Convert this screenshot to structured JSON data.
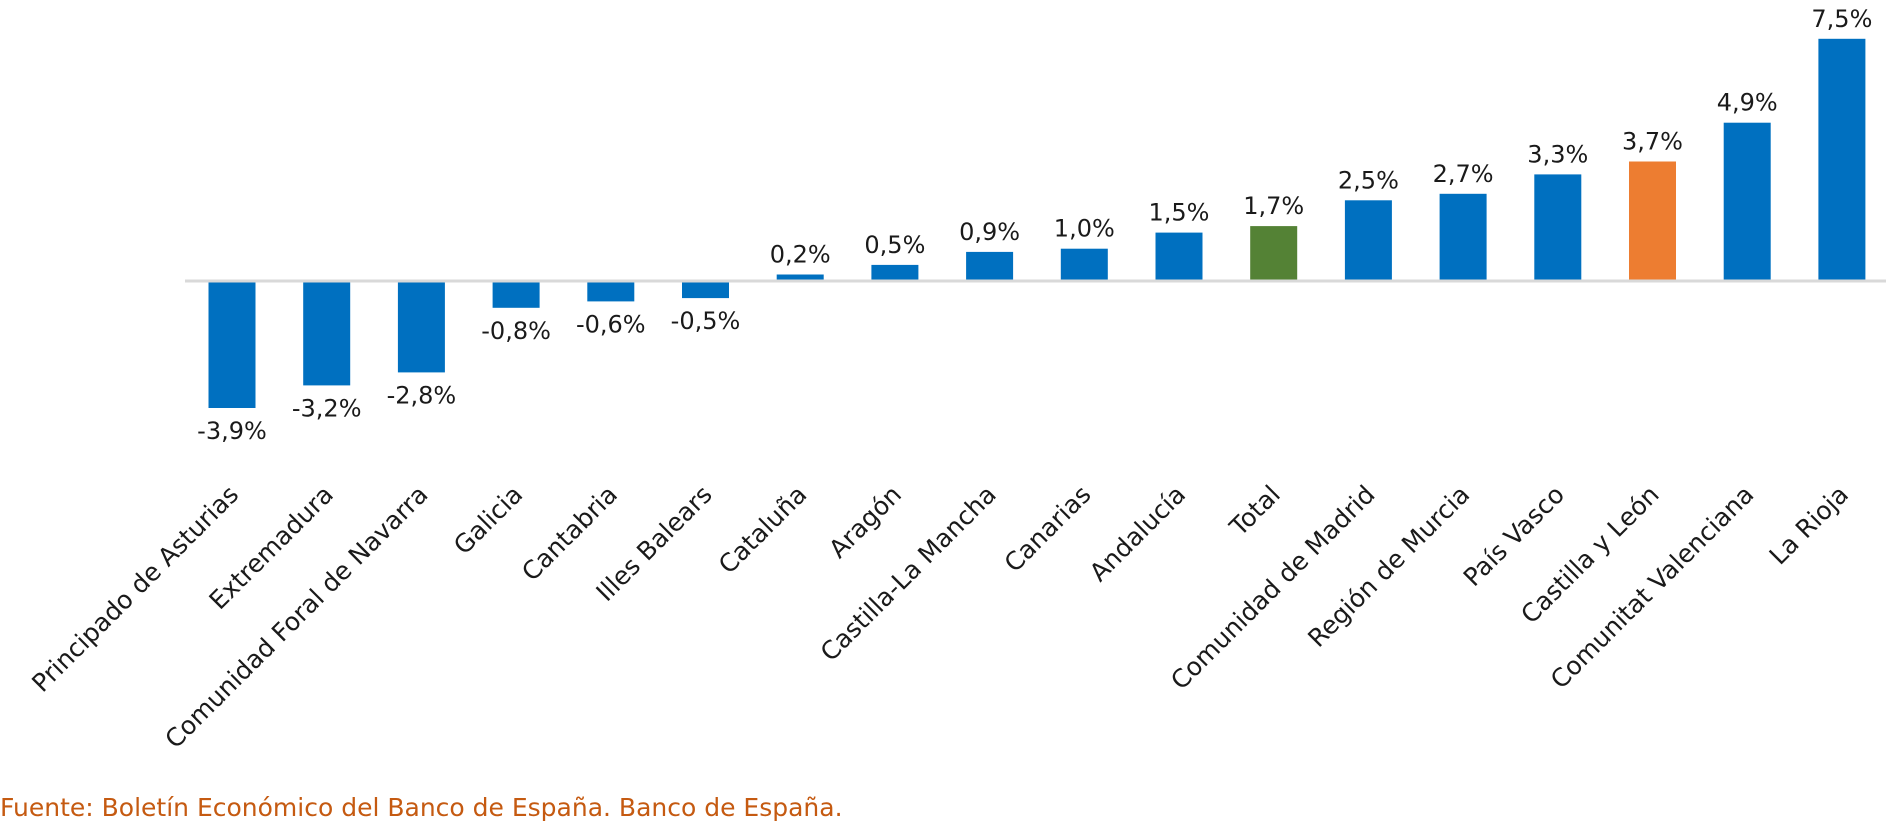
{
  "chart_data": {
    "type": "bar",
    "categories": [
      "Principado de Asturias",
      "Extremadura",
      "Comunidad Foral de Navarra",
      "Galicia",
      "Cantabria",
      "Illes Balears",
      "Cataluña",
      "Aragón",
      "Castilla-La Mancha",
      "Canarias",
      "Andalucía",
      "Total",
      "Comunidad de Madrid",
      "Región de Murcia",
      "País Vasco",
      "Castilla y León",
      "Comunitat Valenciana",
      "La Rioja"
    ],
    "values": [
      -3.9,
      -3.2,
      -2.8,
      -0.8,
      -0.6,
      -0.5,
      0.2,
      0.5,
      0.9,
      1.0,
      1.5,
      1.7,
      2.5,
      2.7,
      3.3,
      3.7,
      4.9,
      7.5
    ],
    "value_labels": [
      "-3,9%",
      "-3,2%",
      "-2,8%",
      "-0,8%",
      "-0,6%",
      "-0,5%",
      "0,2%",
      "0,5%",
      "0,9%",
      "1,0%",
      "1,5%",
      "1,7%",
      "2,5%",
      "2,7%",
      "3,3%",
      "3,7%",
      "4,9%",
      "7,5%"
    ],
    "bar_colors": [
      "#0070c0",
      "#0070c0",
      "#0070c0",
      "#0070c0",
      "#0070c0",
      "#0070c0",
      "#0070c0",
      "#0070c0",
      "#0070c0",
      "#0070c0",
      "#0070c0",
      "#548235",
      "#0070c0",
      "#0070c0",
      "#0070c0",
      "#ed7d31",
      "#0070c0",
      "#0070c0"
    ],
    "title": "",
    "xlabel": "",
    "ylabel": "",
    "ylim": [
      -3.9,
      7.5
    ],
    "grid": false,
    "legend": "none",
    "axis_line_color": "#d9d9d9"
  },
  "source_text": "Fuente: Boletín Económico del Banco de España. Banco de España.",
  "source_color": "#c55a11"
}
